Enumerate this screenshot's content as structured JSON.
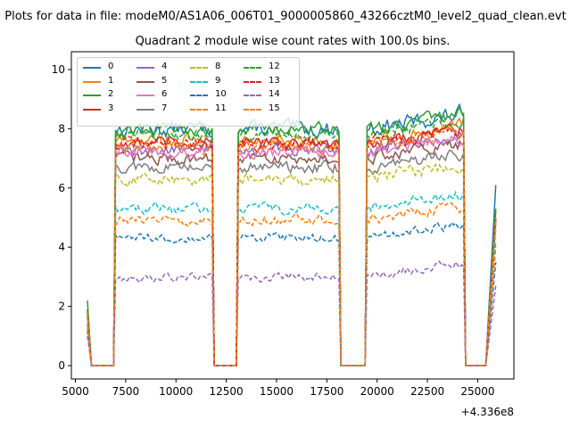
{
  "figure": {
    "suptitle": "Plots for data in file: modeM0/AS1A06_006T01_9000005860_43266cztM0_level2_quad_clean.evt",
    "title": "Quadrant 2 module wise count rates with 100.0s bins.",
    "offset_text": "+4.336e8"
  },
  "chart_data": {
    "type": "line",
    "title": "Quadrant 2 module wise count rates with 100.0s bins.",
    "xlabel": "",
    "ylabel": "",
    "x_offset": 433600000,
    "xlim": [
      4800,
      26800
    ],
    "ylim": [
      -0.45,
      10.6
    ],
    "xticks": [
      5000,
      7500,
      10000,
      12500,
      15000,
      17500,
      20000,
      22500,
      25000
    ],
    "xtick_labels": [
      "5000",
      "7500",
      "10000",
      "12500",
      "15000",
      "17500",
      "20000",
      "22500",
      "25000"
    ],
    "yticks": [
      0,
      2,
      4,
      6,
      8,
      10
    ],
    "ytick_labels": [
      "0",
      "2",
      "4",
      "6",
      "8",
      "10"
    ],
    "grid": false,
    "legend_position": "upper-left",
    "legend_columns": 4,
    "segments": [
      {
        "plateau_start": 7000,
        "plateau_end": 11800,
        "drop_end": 11900
      },
      {
        "plateau_start": 13100,
        "plateau_end": 18100,
        "drop_end": 18200
      },
      {
        "plateau_start": 19500,
        "plateau_end": 24300,
        "drop_end": 24400
      }
    ],
    "gaps": [
      [
        5800,
        6900
      ],
      [
        11900,
        13000
      ],
      [
        18200,
        19400
      ],
      [
        24400,
        25400
      ]
    ],
    "start_x": 5600,
    "end_x": 25900,
    "series": [
      {
        "name": "0",
        "color": "#1f77b4",
        "dash": "solid",
        "level": 8.0,
        "noise": 0.45,
        "start": 1.9,
        "end": 6.1
      },
      {
        "name": "1",
        "color": "#ff7f0e",
        "dash": "solid",
        "level": 7.6,
        "noise": 0.35,
        "start": 1.8,
        "end": 5.2
      },
      {
        "name": "2",
        "color": "#2ca02c",
        "dash": "solid",
        "level": 8.0,
        "noise": 0.35,
        "start": 2.2,
        "end": 5.3
      },
      {
        "name": "3",
        "color": "#d62728",
        "dash": "solid",
        "level": 7.5,
        "noise": 0.35,
        "start": 1.8,
        "end": 5.0
      },
      {
        "name": "4",
        "color": "#9467bd",
        "dash": "solid",
        "level": 7.3,
        "noise": 0.35,
        "start": 1.7,
        "end": 5.0
      },
      {
        "name": "5",
        "color": "#8c564b",
        "dash": "solid",
        "level": 7.0,
        "noise": 0.35,
        "start": 1.7,
        "end": 4.9
      },
      {
        "name": "6",
        "color": "#e377c2",
        "dash": "solid",
        "level": 7.2,
        "noise": 0.35,
        "start": 1.8,
        "end": 5.0
      },
      {
        "name": "7",
        "color": "#7f7f7f",
        "dash": "solid",
        "level": 6.7,
        "noise": 0.35,
        "start": 1.6,
        "end": 4.8
      },
      {
        "name": "8",
        "color": "#bcbd22",
        "dash": "dashed",
        "level": 6.3,
        "noise": 0.35,
        "start": 1.6,
        "end": 4.6
      },
      {
        "name": "9",
        "color": "#17becf",
        "dash": "dashed",
        "level": 5.3,
        "noise": 0.3,
        "start": 1.4,
        "end": 4.2
      },
      {
        "name": "10",
        "color": "#1f77b4",
        "dash": "dashed",
        "level": 4.3,
        "noise": 0.25,
        "start": 1.2,
        "end": 3.5
      },
      {
        "name": "11",
        "color": "#ff7f0e",
        "dash": "dashed",
        "level": 4.9,
        "noise": 0.3,
        "start": 1.3,
        "end": 4.0
      },
      {
        "name": "12",
        "color": "#2ca02c",
        "dash": "dashed",
        "level": 7.8,
        "noise": 0.35,
        "start": 1.9,
        "end": 5.3
      },
      {
        "name": "13",
        "color": "#d62728",
        "dash": "dashed",
        "level": 7.5,
        "noise": 0.35,
        "start": 1.8,
        "end": 5.0
      },
      {
        "name": "14",
        "color": "#9467bd",
        "dash": "dashed",
        "level": 3.0,
        "noise": 0.25,
        "start": 1.0,
        "end": 2.7
      },
      {
        "name": "15",
        "color": "#ff7f0e",
        "dash": "dashed",
        "level": 7.4,
        "noise": 0.35,
        "start": 1.8,
        "end": 5.0
      }
    ]
  }
}
